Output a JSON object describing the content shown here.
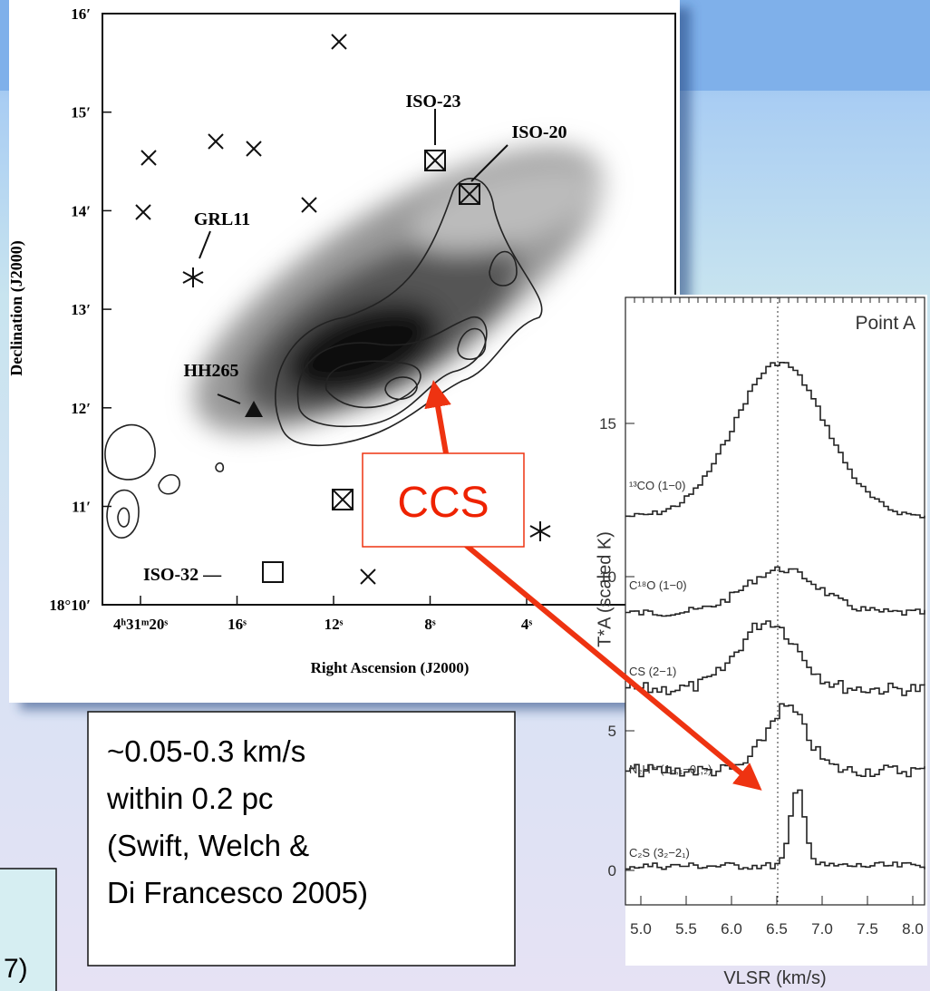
{
  "map": {
    "y_title": "Declination (J2000)",
    "x_title": "Right Ascension (J2000)",
    "y_ticks": [
      "16′",
      "15′",
      "14′",
      "13′",
      "12′",
      "11′",
      "18°10′"
    ],
    "x_ticks": [
      "4ʰ31ᵐ20ˢ",
      "16ˢ",
      "12ˢ",
      "8ˢ",
      "4ˢ"
    ],
    "sources": [
      "ISO-23",
      "ISO-20",
      "GRL11",
      "HH265",
      "ISO-32 —"
    ]
  },
  "spectra": {
    "panel_label": "Point A",
    "y_title": "T*A (scaled K)",
    "x_title": "VLSR (km/s)",
    "y_ticks": [
      "15",
      "10",
      "5",
      "0"
    ],
    "x_ticks": [
      "5.0",
      "5.5",
      "6.0",
      "6.5",
      "7.0",
      "7.5",
      "8.0"
    ],
    "lines": [
      "¹³CO (1−0)",
      "C¹⁸O (1−0)",
      "CS (2−1)",
      "N₂H⁺ (1₀,₁−0₁,₂)",
      "C₂S (3₂−2₁)"
    ]
  },
  "callout": "CCS",
  "note": [
    "~0.05-0.3 km/s",
    "within 0.2 pc",
    "(Swift, Welch &",
    "Di Francesco 2005)"
  ],
  "corner_text": "7)"
}
